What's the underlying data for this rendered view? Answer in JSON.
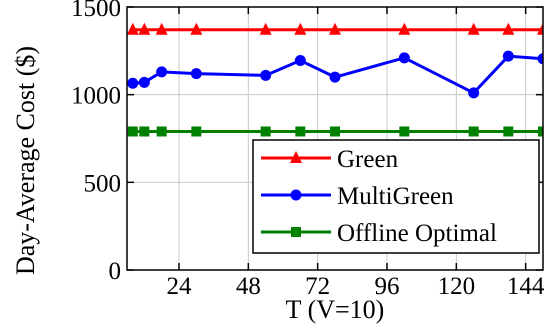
{
  "chart_data": {
    "type": "line",
    "xlabel": "T (V=10)",
    "ylabel": "Day-Average Cost ($)",
    "xlim": [
      6,
      150
    ],
    "ylim": [
      0,
      1500
    ],
    "x_ticks": [
      24,
      48,
      72,
      96,
      120,
      144
    ],
    "y_ticks": [
      0,
      500,
      1000,
      1500
    ],
    "grid": true,
    "legend_position": "bottom-right",
    "series": [
      {
        "name": "Green",
        "color": "#ff0000",
        "marker": "triangle",
        "x": [
          8,
          12,
          18,
          30,
          54,
          66,
          78,
          102,
          126,
          138,
          150
        ],
        "y": [
          1370,
          1370,
          1370,
          1370,
          1370,
          1370,
          1370,
          1370,
          1370,
          1370,
          1370
        ]
      },
      {
        "name": "MultiGreen",
        "color": "#0000ff",
        "marker": "circle",
        "x": [
          8,
          12,
          18,
          30,
          54,
          66,
          78,
          102,
          126,
          138,
          150
        ],
        "y": [
          1065,
          1070,
          1130,
          1120,
          1110,
          1195,
          1100,
          1210,
          1010,
          1220,
          1205
        ]
      },
      {
        "name": "Offline Optimal",
        "color": "#008000",
        "marker": "square",
        "x": [
          8,
          12,
          18,
          30,
          54,
          66,
          78,
          102,
          126,
          138,
          150
        ],
        "y": [
          790,
          790,
          790,
          790,
          790,
          790,
          790,
          790,
          790,
          790,
          790
        ]
      }
    ]
  }
}
